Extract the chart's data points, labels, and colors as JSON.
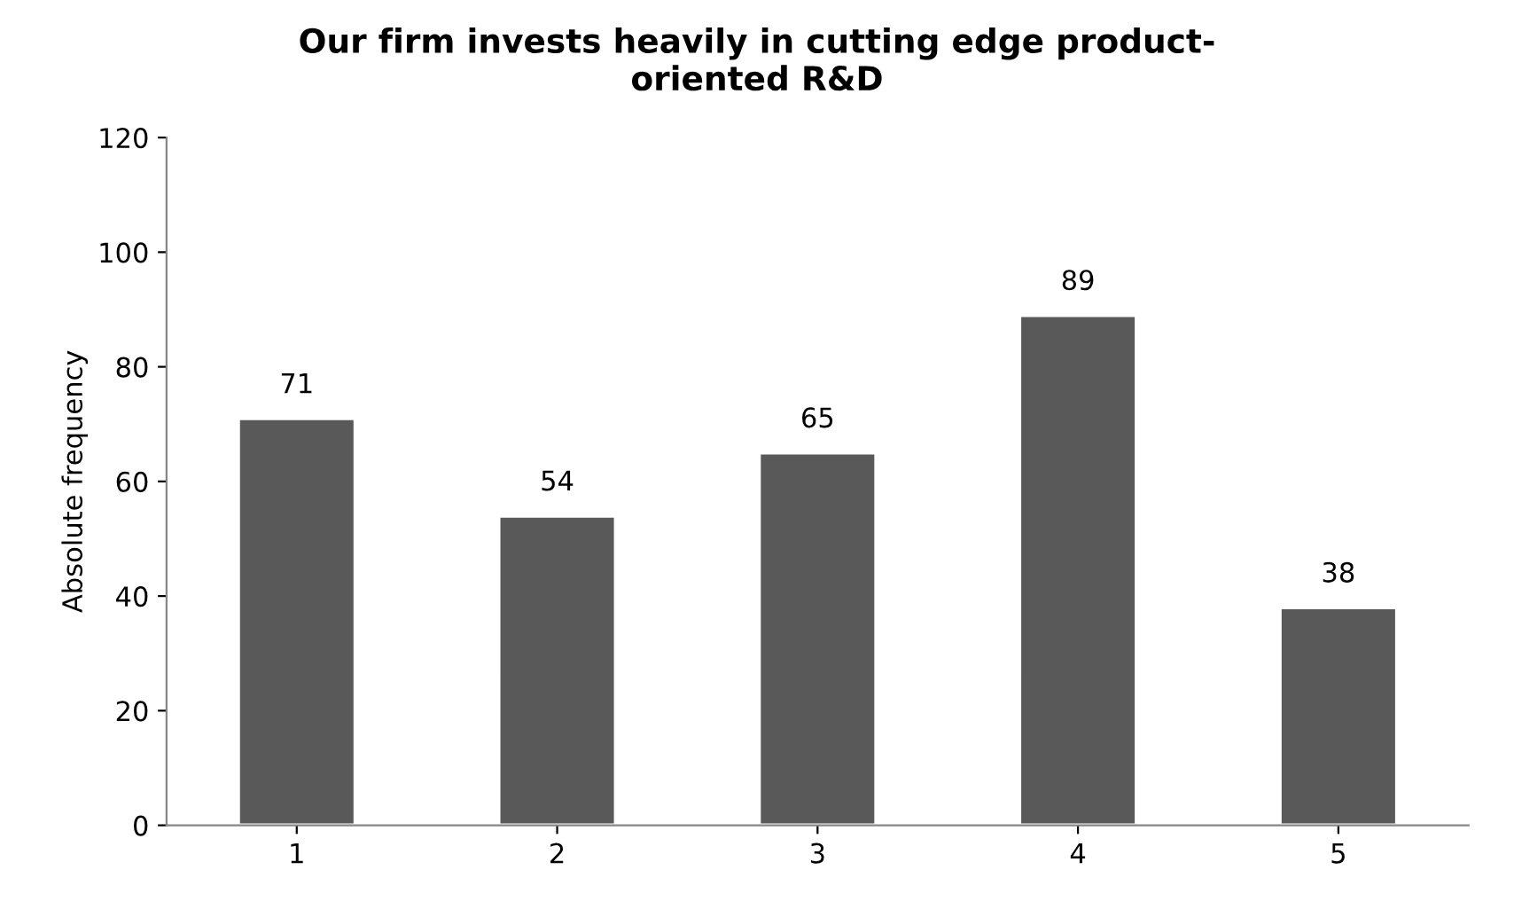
{
  "chart_data": {
    "type": "bar",
    "title": "Our firm invests heavily in cutting edge product-\noriented R&D",
    "ylabel": "Absolute frequency",
    "categories": [
      "1",
      "2",
      "3",
      "4",
      "5"
    ],
    "values": [
      71,
      54,
      65,
      89,
      38
    ],
    "color": "#595959",
    "ylim": [
      0,
      120
    ],
    "yticks": [
      0,
      20,
      40,
      60,
      80,
      100,
      120
    ],
    "grid": false,
    "data_labels": true
  }
}
